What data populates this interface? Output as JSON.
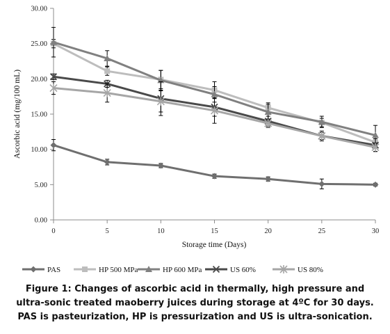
{
  "chart_data": {
    "type": "line",
    "x": [
      0,
      5,
      10,
      15,
      20,
      25,
      30
    ],
    "xlabel": "Storage time  (Days)",
    "ylabel": "Ascorbic acid (mg/100  mL)",
    "xlim": [
      0,
      30
    ],
    "ylim": [
      0,
      30
    ],
    "x_ticks": [
      "0",
      "5",
      "10",
      "15",
      "20",
      "25",
      "30"
    ],
    "y_ticks": [
      "0.00",
      "5.00",
      "10.00",
      "15.00",
      "20.00",
      "25.00",
      "30.00"
    ],
    "legend_position": "bottom",
    "grid": false,
    "series": [
      {
        "name": "PAS",
        "marker": "diamond",
        "color": "#6f6f6f",
        "values": [
          10.6,
          8.2,
          7.7,
          6.2,
          5.8,
          5.1,
          5.0
        ],
        "errors": [
          0.8,
          0.4,
          0.3,
          0.3,
          0.3,
          0.7,
          0.2
        ]
      },
      {
        "name": "HP 500 MPa",
        "marker": "square",
        "color": "#bdbdbd",
        "values": [
          25.0,
          21.1,
          19.9,
          18.4,
          15.9,
          13.8,
          11.0
        ],
        "errors": [
          0.6,
          0.6,
          1.3,
          1.2,
          0.7,
          0.6,
          0.5
        ]
      },
      {
        "name": "HP 600 MPa",
        "marker": "triangle",
        "color": "#808080",
        "values": [
          25.2,
          22.9,
          19.8,
          17.8,
          15.3,
          13.9,
          12.0
        ],
        "errors": [
          2.1,
          1.1,
          1.4,
          1.1,
          1.1,
          0.8,
          1.4
        ]
      },
      {
        "name": "US 60%",
        "marker": "x",
        "color": "#4a4a4a",
        "values": [
          20.3,
          19.3,
          17.2,
          16.0,
          14.0,
          11.9,
          10.6
        ],
        "errors": [
          0.4,
          0.5,
          2.4,
          1.3,
          0.7,
          0.7,
          0.9
        ]
      },
      {
        "name": "US 80%",
        "marker": "asterisk",
        "color": "#a6a6a6",
        "values": [
          18.7,
          18.0,
          16.8,
          15.5,
          13.7,
          11.9,
          10.3
        ],
        "errors": [
          0.9,
          1.3,
          1.5,
          1.8,
          0.6,
          0.5,
          0.6
        ]
      }
    ]
  },
  "caption": {
    "line1": "Figure 1: Changes of ascorbic acid in thermally, high pressure and",
    "line2": "ultra-sonic treated maoberry juices during storage at 4ºC for 30 days.",
    "line3": "PAS is pasteurization, HP is pressurization and US is ultra-sonication."
  }
}
